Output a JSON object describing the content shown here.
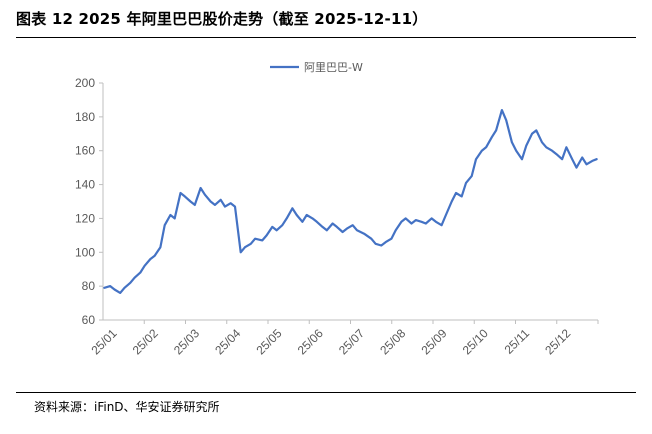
{
  "figure": {
    "title": "图表 12 2025 年阿里巴巴股价走势（截至 2025-12-11）",
    "source": "资料来源：iFinD、华安证券研究所"
  },
  "colors": {
    "series": "#4472C4",
    "axis": "#BFBFBF",
    "text": "#595959"
  },
  "chart_data": {
    "type": "line",
    "title": "",
    "xlabel": "",
    "ylabel": "",
    "ylim": [
      60,
      200
    ],
    "yticks": [
      60,
      80,
      100,
      120,
      140,
      160,
      180,
      200
    ],
    "xticks": [
      "25/01",
      "25/02",
      "25/03",
      "25/04",
      "25/05",
      "25/06",
      "25/07",
      "25/08",
      "25/09",
      "25/10",
      "25/11",
      "25/12"
    ],
    "grid": false,
    "legend_position": "top-center",
    "series": [
      {
        "name": "阿里巴巴-W",
        "x": [
          "2025-01-02",
          "2025-01-06",
          "2025-01-09",
          "2025-01-13",
          "2025-01-16",
          "2025-01-20",
          "2025-01-23",
          "2025-01-27",
          "2025-01-30",
          "2025-02-03",
          "2025-02-06",
          "2025-02-10",
          "2025-02-13",
          "2025-02-17",
          "2025-02-20",
          "2025-02-24",
          "2025-02-27",
          "2025-03-03",
          "2025-03-06",
          "2025-03-10",
          "2025-03-13",
          "2025-03-17",
          "2025-03-20",
          "2025-03-24",
          "2025-03-27",
          "2025-03-31",
          "2025-04-03",
          "2025-04-07",
          "2025-04-10",
          "2025-04-14",
          "2025-04-17",
          "2025-04-22",
          "2025-04-25",
          "2025-04-29",
          "2025-05-02",
          "2025-05-06",
          "2025-05-09",
          "2025-05-13",
          "2025-05-16",
          "2025-05-20",
          "2025-05-23",
          "2025-05-27",
          "2025-05-30",
          "2025-06-03",
          "2025-06-06",
          "2025-06-10",
          "2025-06-13",
          "2025-06-17",
          "2025-06-20",
          "2025-06-24",
          "2025-06-27",
          "2025-07-02",
          "2025-07-07",
          "2025-07-10",
          "2025-07-14",
          "2025-07-17",
          "2025-07-21",
          "2025-07-24",
          "2025-07-28",
          "2025-07-31",
          "2025-08-04",
          "2025-08-07",
          "2025-08-11",
          "2025-08-14",
          "2025-08-18",
          "2025-08-21",
          "2025-08-25",
          "2025-08-28",
          "2025-09-01",
          "2025-09-04",
          "2025-09-08",
          "2025-09-11",
          "2025-09-15",
          "2025-09-18",
          "2025-09-22",
          "2025-09-25",
          "2025-09-29",
          "2025-10-02",
          "2025-10-06",
          "2025-10-09",
          "2025-10-13",
          "2025-10-16",
          "2025-10-20",
          "2025-10-23",
          "2025-10-27",
          "2025-10-30",
          "2025-11-03",
          "2025-11-06",
          "2025-11-10",
          "2025-11-13",
          "2025-11-17",
          "2025-11-20",
          "2025-11-24",
          "2025-11-27",
          "2025-12-01",
          "2025-12-04",
          "2025-12-08",
          "2025-12-11"
        ],
        "y": [
          79,
          80,
          78,
          76,
          79,
          82,
          85,
          88,
          92,
          96,
          98,
          103,
          116,
          122,
          120,
          135,
          133,
          130,
          128,
          138,
          134,
          130,
          128,
          131,
          127,
          129,
          127,
          100,
          103,
          105,
          108,
          107,
          110,
          115,
          113,
          116,
          120,
          126,
          122,
          118,
          122,
          120,
          118,
          115,
          113,
          117,
          115,
          112,
          114,
          116,
          113,
          111,
          108,
          105,
          104,
          106,
          108,
          113,
          118,
          120,
          117,
          119,
          118,
          117,
          120,
          118,
          116,
          122,
          130,
          135,
          133,
          141,
          145,
          155,
          160,
          162,
          168,
          172,
          184,
          178,
          165,
          160,
          155,
          163,
          170,
          172,
          165,
          162,
          160,
          158,
          155,
          162,
          155,
          150,
          156,
          152,
          154,
          155
        ]
      }
    ]
  }
}
